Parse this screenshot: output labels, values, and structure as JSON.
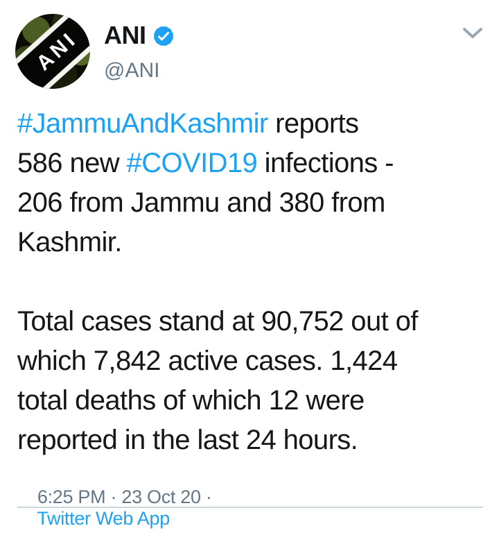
{
  "colors": {
    "accent_blue": "#1da1f2",
    "text_dark": "#14171a",
    "text_gray": "#657786",
    "divider": "#ccd6dd",
    "avatar_dark": "#0b0d04"
  },
  "header": {
    "display_name": "ANI",
    "handle": "@ANI",
    "avatar_text": "ANI",
    "verified_badge_icon": "verified-checkmark",
    "collapse_icon": "chevron-down"
  },
  "tweet": {
    "paragraphs": [
      {
        "lines": [
          [
            {
              "t": "#JammuAndKashmir",
              "kind": "hashtag"
            },
            {
              "t": " reports",
              "kind": "plain"
            }
          ],
          [
            {
              "t": "586 new ",
              "kind": "plain"
            },
            {
              "t": "#COVID19",
              "kind": "hashtag"
            },
            {
              "t": " infections -",
              "kind": "plain"
            }
          ],
          [
            {
              "t": "206 from Jammu and 380 from",
              "kind": "plain"
            }
          ],
          [
            {
              "t": "Kashmir.",
              "kind": "plain"
            }
          ]
        ]
      },
      {
        "lines": [
          [
            {
              "t": "Total cases stand at 90,752 out of",
              "kind": "plain"
            }
          ],
          [
            {
              "t": "which 7,842 active cases. 1,424",
              "kind": "plain"
            }
          ],
          [
            {
              "t": "total deaths of which 12 were",
              "kind": "plain"
            }
          ],
          [
            {
              "t": "reported in the last 24 hours.",
              "kind": "plain"
            }
          ]
        ]
      }
    ]
  },
  "meta": {
    "timestamp_prefix": "6:25 PM · 23 Oct 20 · ",
    "source": "Twitter Web App"
  }
}
